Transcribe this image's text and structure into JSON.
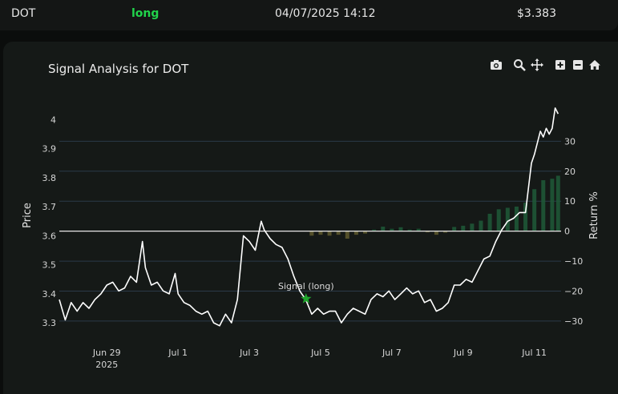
{
  "signal": {
    "symbol": "DOT",
    "direction": "long",
    "direction_color": "#21d44b",
    "datetime": "04/07/2025 14:12",
    "price": "$3.383"
  },
  "toolbar": {
    "icons": [
      "camera-icon",
      "zoom-icon",
      "pan-icon",
      "zoom-in-icon",
      "zoom-out-icon",
      "home-icon"
    ]
  },
  "chart_data": {
    "type": "line",
    "title": "Signal Analysis for DOT",
    "ylabel": "Price",
    "y2label": "Return %",
    "ylim": [
      3.27,
      4.07
    ],
    "y2lim": [
      -33.5,
      44
    ],
    "yticks": [
      3.3,
      3.4,
      3.5,
      3.6,
      3.7,
      3.8,
      3.9,
      4
    ],
    "y2ticks": [
      -30,
      -20,
      -10,
      0,
      10,
      20,
      30
    ],
    "xlim": [
      "2025-06-27T16:00",
      "2025-07-11T18:00"
    ],
    "xticks": [
      {
        "x": "2025-06-29",
        "label": "Jun 29",
        "sub": "2025"
      },
      {
        "x": "2025-07-01",
        "label": "Jul 1",
        "sub": ""
      },
      {
        "x": "2025-07-03",
        "label": "Jul 3",
        "sub": ""
      },
      {
        "x": "2025-07-05",
        "label": "Jul 5",
        "sub": ""
      },
      {
        "x": "2025-07-07",
        "label": "Jul 7",
        "sub": ""
      },
      {
        "x": "2025-07-09",
        "label": "Jul 9",
        "sub": ""
      },
      {
        "x": "2025-07-11",
        "label": "Jul 11",
        "sub": ""
      }
    ],
    "colors": {
      "price": "#ffffff",
      "grid": "#2b3a48",
      "zero_line": "#e8e8e8",
      "gain": "#1f5a38",
      "loss": "#5f5a2e",
      "signal": "#1fa52c"
    },
    "grid": true,
    "series": [
      {
        "kind": "price",
        "x": [
          "2025-06-27T16:00",
          "2025-06-27T20:00",
          "2025-06-28T00:00",
          "2025-06-28T04:00",
          "2025-06-28T08:00",
          "2025-06-28T12:00",
          "2025-06-28T16:00",
          "2025-06-28T20:00",
          "2025-06-29T00:00",
          "2025-06-29T04:00",
          "2025-06-29T08:00",
          "2025-06-29T12:00",
          "2025-06-29T16:00",
          "2025-06-29T20:00",
          "2025-06-30T00:00",
          "2025-06-30T02:00",
          "2025-06-30T06:00",
          "2025-06-30T10:00",
          "2025-06-30T14:00",
          "2025-06-30T18:00",
          "2025-06-30T22:00",
          "2025-07-01T00:00",
          "2025-07-01T04:00",
          "2025-07-01T08:00",
          "2025-07-01T12:00",
          "2025-07-01T16:00",
          "2025-07-01T20:00",
          "2025-07-02T00:00",
          "2025-07-02T04:00",
          "2025-07-02T08:00",
          "2025-07-02T12:00",
          "2025-07-02T16:00",
          "2025-07-02T20:00",
          "2025-07-03T00:00",
          "2025-07-03T04:00",
          "2025-07-03T08:00",
          "2025-07-03T10:00",
          "2025-07-03T14:00",
          "2025-07-03T18:00",
          "2025-07-03T22:00",
          "2025-07-04T02:00",
          "2025-07-04T06:00",
          "2025-07-04T10:00",
          "2025-07-04T14:00",
          "2025-07-04T18:00",
          "2025-07-04T22:00",
          "2025-07-05T02:00",
          "2025-07-05T06:00",
          "2025-07-05T10:00",
          "2025-07-05T14:00",
          "2025-07-05T18:00",
          "2025-07-05T22:00",
          "2025-07-06T02:00",
          "2025-07-06T06:00",
          "2025-07-06T10:00",
          "2025-07-06T14:00",
          "2025-07-06T18:00",
          "2025-07-06T22:00",
          "2025-07-07T02:00",
          "2025-07-07T06:00",
          "2025-07-07T10:00",
          "2025-07-07T14:00",
          "2025-07-07T18:00",
          "2025-07-07T22:00",
          "2025-07-08T02:00",
          "2025-07-08T06:00",
          "2025-07-08T10:00",
          "2025-07-08T14:00",
          "2025-07-08T18:00",
          "2025-07-08T22:00",
          "2025-07-09T02:00",
          "2025-07-09T06:00",
          "2025-07-09T10:00",
          "2025-07-09T14:00",
          "2025-07-09T18:00",
          "2025-07-09T22:00",
          "2025-07-10T02:00",
          "2025-07-10T06:00",
          "2025-07-10T10:00",
          "2025-07-10T14:00",
          "2025-07-10T18:00",
          "2025-07-10T22:00",
          "2025-07-11T00:00",
          "2025-07-11T02:00",
          "2025-07-11T04:00",
          "2025-07-11T06:00",
          "2025-07-11T08:00",
          "2025-07-11T10:00",
          "2025-07-11T12:00",
          "2025-07-11T14:00",
          "2025-07-11T16:00"
        ],
        "y": [
          3.38,
          3.31,
          3.37,
          3.34,
          3.37,
          3.35,
          3.38,
          3.4,
          3.43,
          3.44,
          3.41,
          3.42,
          3.46,
          3.44,
          3.58,
          3.49,
          3.43,
          3.44,
          3.41,
          3.4,
          3.47,
          3.4,
          3.37,
          3.36,
          3.34,
          3.33,
          3.34,
          3.3,
          3.29,
          3.33,
          3.3,
          3.38,
          3.6,
          3.58,
          3.55,
          3.65,
          3.62,
          3.59,
          3.57,
          3.56,
          3.52,
          3.46,
          3.41,
          3.38,
          3.33,
          3.35,
          3.33,
          3.34,
          3.34,
          3.3,
          3.33,
          3.35,
          3.34,
          3.33,
          3.38,
          3.4,
          3.39,
          3.41,
          3.38,
          3.4,
          3.42,
          3.4,
          3.41,
          3.37,
          3.38,
          3.34,
          3.35,
          3.37,
          3.43,
          3.43,
          3.45,
          3.44,
          3.48,
          3.52,
          3.53,
          3.58,
          3.62,
          3.65,
          3.66,
          3.68,
          3.68,
          3.85,
          3.88,
          3.92,
          3.96,
          3.94,
          3.97,
          3.95,
          3.97,
          4.04,
          4.02
        ]
      },
      {
        "kind": "return_bars",
        "x": [
          "2025-07-04T18:00",
          "2025-07-05T00:00",
          "2025-07-05T06:00",
          "2025-07-05T12:00",
          "2025-07-05T18:00",
          "2025-07-06T00:00",
          "2025-07-06T06:00",
          "2025-07-06T12:00",
          "2025-07-06T18:00",
          "2025-07-07T00:00",
          "2025-07-07T06:00",
          "2025-07-07T12:00",
          "2025-07-07T18:00",
          "2025-07-08T00:00",
          "2025-07-08T06:00",
          "2025-07-08T12:00",
          "2025-07-08T18:00",
          "2025-07-09T00:00",
          "2025-07-09T06:00",
          "2025-07-09T12:00",
          "2025-07-09T18:00",
          "2025-07-10T00:00",
          "2025-07-10T06:00",
          "2025-07-10T12:00",
          "2025-07-10T18:00",
          "2025-07-11T00:00",
          "2025-07-11T06:00",
          "2025-07-11T12:00",
          "2025-07-11T16:00"
        ],
        "y": [
          -1.5,
          -1.2,
          -1.5,
          -1.2,
          -2.5,
          -1.2,
          -0.8,
          0.5,
          1.5,
          0.8,
          1.3,
          0.5,
          0.8,
          -0.4,
          -1.2,
          -0.5,
          1.4,
          1.8,
          2.5,
          3.5,
          5.8,
          7.3,
          7.8,
          8.2,
          9.5,
          14,
          17,
          17.5,
          18.5
        ]
      }
    ],
    "annotations": [
      {
        "text": "Signal (long)",
        "x": "2025-07-04T14:12",
        "y": 3.383
      }
    ]
  }
}
